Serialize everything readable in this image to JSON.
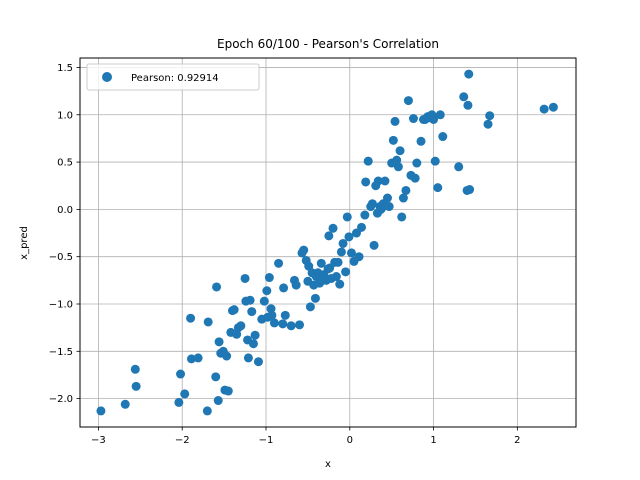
{
  "chart_data": {
    "type": "scatter",
    "title": "Epoch 60/100 - Pearson's Correlation",
    "xlabel": "x",
    "ylabel": "x_pred",
    "xlim": [
      -3.22,
      2.7
    ],
    "ylim": [
      -2.3,
      1.6
    ],
    "xticks": [
      -3,
      -2,
      -1,
      0,
      1,
      2
    ],
    "yticks": [
      -2.0,
      -1.5,
      -1.0,
      -0.5,
      0.0,
      0.5,
      1.0,
      1.5
    ],
    "xtick_labels": [
      "−3",
      "−2",
      "−1",
      "0",
      "1",
      "2"
    ],
    "ytick_labels": [
      "−2.0",
      "−1.5",
      "−1.0",
      "−0.5",
      "0.0",
      "0.5",
      "1.0",
      "1.5"
    ],
    "grid": true,
    "legend_position": "top-left",
    "color": "#1f77b4",
    "series": [
      {
        "name": "Pearson: 0.92914",
        "x": [
          -2.97,
          -2.68,
          -2.56,
          -2.55,
          -2.04,
          -2.02,
          -1.97,
          -1.9,
          -1.89,
          -1.81,
          -1.7,
          -1.69,
          -1.6,
          -1.59,
          -1.57,
          -1.56,
          -1.54,
          -1.51,
          -1.49,
          -1.47,
          -1.45,
          -1.42,
          -1.4,
          -1.38,
          -1.35,
          -1.33,
          -1.3,
          -1.25,
          -1.24,
          -1.22,
          -1.21,
          -1.19,
          -1.17,
          -1.15,
          -1.13,
          -1.09,
          -1.05,
          -1.02,
          -0.99,
          -0.98,
          -0.96,
          -0.94,
          -0.93,
          -0.9,
          -0.85,
          -0.8,
          -0.79,
          -0.77,
          -0.7,
          -0.66,
          -0.64,
          -0.6,
          -0.57,
          -0.55,
          -0.52,
          -0.5,
          -0.49,
          -0.47,
          -0.45,
          -0.43,
          -0.41,
          -0.4,
          -0.38,
          -0.36,
          -0.34,
          -0.33,
          -0.31,
          -0.3,
          -0.28,
          -0.26,
          -0.25,
          -0.24,
          -0.22,
          -0.2,
          -0.18,
          -0.16,
          -0.14,
          -0.12,
          -0.1,
          -0.08,
          -0.05,
          -0.03,
          -0.01,
          0.02,
          0.05,
          0.08,
          0.11,
          0.14,
          0.18,
          0.19,
          0.22,
          0.25,
          0.27,
          0.29,
          0.31,
          0.33,
          0.34,
          0.36,
          0.37,
          0.38,
          0.39,
          0.4,
          0.42,
          0.45,
          0.47,
          0.5,
          0.52,
          0.54,
          0.56,
          0.58,
          0.6,
          0.62,
          0.64,
          0.67,
          0.7,
          0.73,
          0.76,
          0.78,
          0.8,
          0.85,
          0.88,
          0.9,
          0.93,
          0.95,
          0.98,
          1.0,
          1.02,
          1.05,
          1.08,
          1.11,
          1.3,
          1.36,
          1.4,
          1.41,
          1.43,
          1.65,
          1.67,
          2.32,
          2.43
        ],
        "y": [
          -2.13,
          -2.06,
          -1.69,
          -1.87,
          -2.04,
          -1.74,
          -1.95,
          -1.15,
          -1.58,
          -1.57,
          -2.13,
          -1.19,
          -1.77,
          -0.82,
          -2.02,
          -1.4,
          -1.52,
          -1.5,
          -1.91,
          -1.55,
          -1.92,
          -1.3,
          -1.07,
          -1.06,
          -1.32,
          -1.25,
          -1.23,
          -0.73,
          -0.97,
          -1.38,
          -1.57,
          -0.96,
          -1.08,
          -1.42,
          -1.33,
          -1.61,
          -1.16,
          -0.97,
          -0.86,
          -1.14,
          -0.72,
          -1.05,
          -1.12,
          -1.2,
          -0.57,
          -1.21,
          -0.83,
          -1.12,
          -1.23,
          -0.75,
          -0.8,
          -1.22,
          -0.46,
          -0.43,
          -0.54,
          -0.76,
          -0.6,
          -1.03,
          -0.67,
          -0.8,
          -0.94,
          -0.71,
          -0.67,
          -0.78,
          -0.57,
          -0.75,
          -0.69,
          -0.72,
          -0.75,
          -0.63,
          -0.28,
          -0.62,
          -0.73,
          -0.2,
          -0.56,
          -0.71,
          -0.56,
          -0.79,
          -0.45,
          -0.36,
          -0.66,
          -0.08,
          -0.29,
          -0.46,
          -0.55,
          -0.25,
          -0.5,
          -0.19,
          -0.06,
          0.29,
          0.51,
          0.03,
          0.06,
          -0.38,
          0.25,
          -0.04,
          0.3,
          0.03,
          0.0,
          0.01,
          0.04,
          0.06,
          0.3,
          0.12,
          0.03,
          0.49,
          0.73,
          0.93,
          0.52,
          0.45,
          0.62,
          -0.08,
          0.12,
          0.2,
          1.15,
          0.36,
          0.96,
          0.33,
          0.49,
          0.72,
          0.95,
          0.95,
          0.98,
          0.97,
          1.0,
          0.95,
          0.51,
          0.23,
          1.0,
          0.77,
          0.45,
          1.19,
          0.2,
          1.1,
          0.21,
          0.9,
          0.99,
          1.06,
          1.08
        ]
      }
    ],
    "outlier_point": {
      "x": 1.42,
      "y": 1.43
    }
  }
}
